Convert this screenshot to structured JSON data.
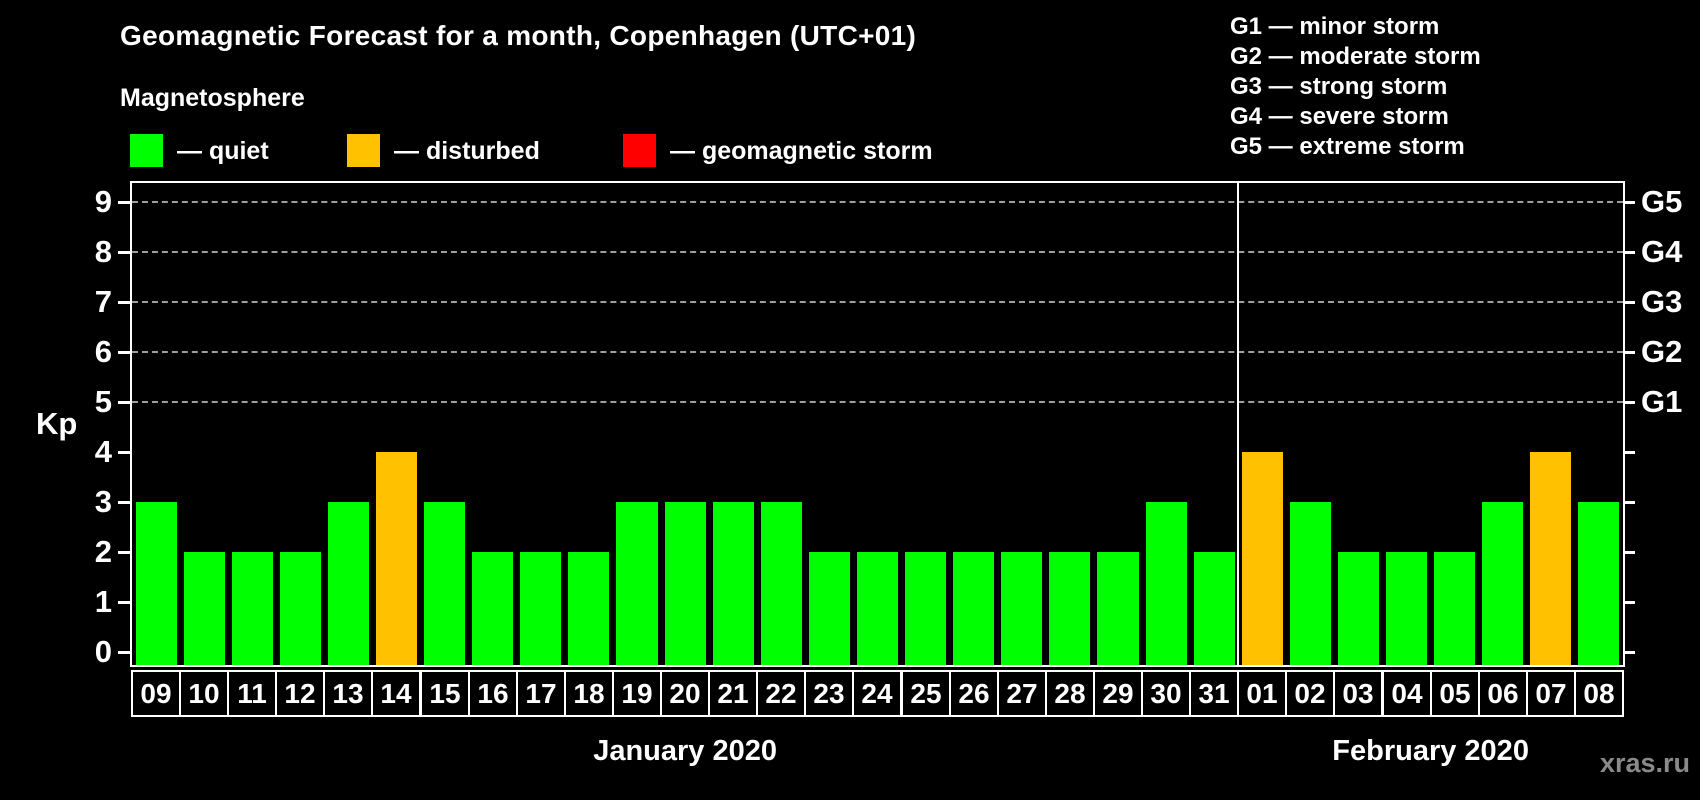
{
  "title": "Geomagnetic Forecast for a month, Copenhagen (UTC+01)",
  "subtitle": "Magnetosphere",
  "legend": {
    "items": [
      {
        "label": "— quiet",
        "status": "quiet",
        "color": "#00ff00"
      },
      {
        "label": "— disturbed",
        "status": "disturbed",
        "color": "#ffc100"
      },
      {
        "label": "— geomagnetic storm",
        "status": "storm",
        "color": "#ff0000"
      }
    ]
  },
  "storm_scale_legend": [
    "G1 — minor storm",
    "G2 — moderate storm",
    "G3 — strong storm",
    "G4 — severe storm",
    "G5 — extreme storm"
  ],
  "watermark": "xras.ru",
  "colors": {
    "background": "#000000",
    "axis": "#ffffff",
    "grid": "#9f9f9f",
    "text": "#ffffff",
    "watermark": "#8a8a8a"
  },
  "chart_data": {
    "type": "bar",
    "title": "Geomagnetic Forecast for a month, Copenhagen (UTC+01)",
    "xlabel": "",
    "ylabel": "Kp",
    "ylim": [
      0,
      9
    ],
    "yticks": [
      0,
      1,
      2,
      3,
      4,
      5,
      6,
      7,
      8,
      9
    ],
    "gridlines_at": [
      5,
      6,
      7,
      8,
      9
    ],
    "grid": "horizontal dashed at Kp 5–9 (G1–G5 storm levels)",
    "legend_position": "top-left",
    "right_axis": [
      {
        "kp": 5,
        "label": "G1"
      },
      {
        "kp": 6,
        "label": "G2"
      },
      {
        "kp": 7,
        "label": "G3"
      },
      {
        "kp": 8,
        "label": "G4"
      },
      {
        "kp": 9,
        "label": "G5"
      }
    ],
    "status_colors": {
      "quiet": "#00ff00",
      "disturbed": "#ffc100",
      "storm": "#ff0000"
    },
    "months": [
      {
        "label": "January 2020",
        "start": 0,
        "count": 23
      },
      {
        "label": "February 2020",
        "start": 23,
        "count": 8
      }
    ],
    "bars": [
      {
        "day": "09",
        "kp": 3,
        "status": "quiet"
      },
      {
        "day": "10",
        "kp": 2,
        "status": "quiet"
      },
      {
        "day": "11",
        "kp": 2,
        "status": "quiet"
      },
      {
        "day": "12",
        "kp": 2,
        "status": "quiet"
      },
      {
        "day": "13",
        "kp": 3,
        "status": "quiet"
      },
      {
        "day": "14",
        "kp": 4,
        "status": "disturbed"
      },
      {
        "day": "15",
        "kp": 3,
        "status": "quiet"
      },
      {
        "day": "16",
        "kp": 2,
        "status": "quiet"
      },
      {
        "day": "17",
        "kp": 2,
        "status": "quiet"
      },
      {
        "day": "18",
        "kp": 2,
        "status": "quiet"
      },
      {
        "day": "19",
        "kp": 3,
        "status": "quiet"
      },
      {
        "day": "20",
        "kp": 3,
        "status": "quiet"
      },
      {
        "day": "21",
        "kp": 3,
        "status": "quiet"
      },
      {
        "day": "22",
        "kp": 3,
        "status": "quiet"
      },
      {
        "day": "23",
        "kp": 2,
        "status": "quiet"
      },
      {
        "day": "24",
        "kp": 2,
        "status": "quiet"
      },
      {
        "day": "25",
        "kp": 2,
        "status": "quiet"
      },
      {
        "day": "26",
        "kp": 2,
        "status": "quiet"
      },
      {
        "day": "27",
        "kp": 2,
        "status": "quiet"
      },
      {
        "day": "28",
        "kp": 2,
        "status": "quiet"
      },
      {
        "day": "29",
        "kp": 2,
        "status": "quiet"
      },
      {
        "day": "30",
        "kp": 3,
        "status": "quiet"
      },
      {
        "day": "31",
        "kp": 2,
        "status": "quiet"
      },
      {
        "day": "01",
        "kp": 4,
        "status": "disturbed"
      },
      {
        "day": "02",
        "kp": 3,
        "status": "quiet"
      },
      {
        "day": "03",
        "kp": 2,
        "status": "quiet"
      },
      {
        "day": "04",
        "kp": 2,
        "status": "quiet"
      },
      {
        "day": "05",
        "kp": 2,
        "status": "quiet"
      },
      {
        "day": "06",
        "kp": 3,
        "status": "quiet"
      },
      {
        "day": "07",
        "kp": 4,
        "status": "disturbed"
      },
      {
        "day": "08",
        "kp": 3,
        "status": "quiet"
      }
    ]
  }
}
